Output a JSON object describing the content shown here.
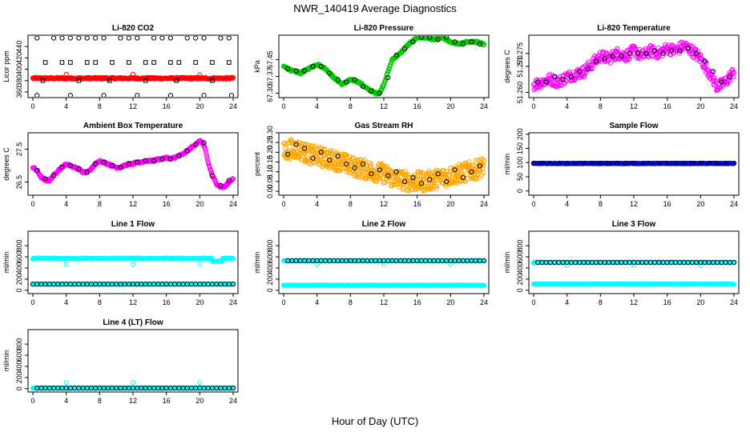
{
  "figure": {
    "title": "NWR_140419  Average Diagnostics",
    "xlabel": "Hour of Day (UTC)"
  },
  "colors": {
    "black": "#000000",
    "red": "#ff0000",
    "green": "#00cc00",
    "magenta": "#ff00ff",
    "orange": "#ffa500",
    "blue": "#0000ff",
    "cyan": "#00ffff"
  },
  "chart_data": [
    {
      "type": "scatter",
      "title": "Li-820 CO2",
      "ylabel": "Licor ppm",
      "xlim": [
        0,
        24
      ],
      "ylim": [
        350,
        460
      ],
      "xticks": [
        0,
        4,
        8,
        12,
        16,
        20,
        24
      ],
      "yticks": [
        360,
        380,
        400,
        420,
        440
      ],
      "ytick_labels": [
        "360",
        "380",
        "400",
        "420",
        "440"
      ],
      "series": [
        {
          "color": "red",
          "marker": "o",
          "dense_band": {
            "y": 384,
            "jitter": 1.5
          },
          "x": [
            4,
            12,
            20
          ],
          "y": [
            391,
            391,
            390
          ]
        },
        {
          "color": "black",
          "marker": "o",
          "x": [
            0.5,
            2.5,
            3.5,
            4.5,
            5.5,
            6.5,
            7.5,
            8.5,
            10.5,
            11.5,
            12.5,
            14.5,
            15.5,
            16.5,
            18.5,
            19.5,
            20.5,
            22.5,
            23.5,
            0.5,
            4.5,
            8.5,
            12.5,
            16.5,
            20.5,
            23.8
          ],
          "y": [
            455,
            455,
            455,
            455,
            455,
            455,
            455,
            455,
            455,
            455,
            455,
            455,
            455,
            455,
            455,
            455,
            455,
            455,
            455,
            354,
            354,
            354,
            354,
            354,
            354,
            354
          ]
        },
        {
          "color": "black",
          "marker": "s",
          "x": [
            1.5,
            3.5,
            4.5,
            6.5,
            7.5,
            9.5,
            11.5,
            13.5,
            14.5,
            16.5,
            17.5,
            19.5,
            21.5,
            23.5,
            1.2,
            5.5,
            9.2,
            13.5,
            17.2,
            21.5
          ],
          "y": [
            412,
            412,
            412,
            412,
            412,
            412,
            412,
            412,
            412,
            412,
            412,
            412,
            412,
            412,
            380,
            380,
            380,
            380,
            380,
            380
          ]
        }
      ]
    },
    {
      "type": "scatter",
      "title": "Li-820 Pressure",
      "ylabel": "kPa",
      "xlim": [
        0,
        24
      ],
      "ylim": [
        67.28,
        67.56
      ],
      "xticks": [
        0,
        4,
        8,
        12,
        16,
        20,
        24
      ],
      "yticks": [
        67.3,
        67.375,
        67.45
      ],
      "ytick_labels": [
        "67.30",
        "67.37",
        "67.45"
      ],
      "series": [
        {
          "color": "green",
          "marker": "o",
          "x": [
            0,
            1,
            2,
            3,
            4,
            5,
            6,
            7,
            8,
            9,
            10,
            11,
            11.5,
            12,
            13,
            14,
            15,
            16,
            17,
            18,
            19,
            20,
            21,
            22,
            23,
            24
          ],
          "y": [
            67.42,
            67.4,
            67.39,
            67.41,
            67.43,
            67.41,
            67.37,
            67.34,
            67.36,
            67.35,
            67.32,
            67.3,
            67.3,
            67.34,
            67.45,
            67.48,
            67.52,
            67.55,
            67.55,
            67.54,
            67.55,
            67.53,
            67.52,
            67.53,
            67.53,
            67.52
          ]
        },
        {
          "color": "black",
          "marker": "o",
          "x": [
            0.5,
            1.5,
            2.5,
            3.5,
            4.5,
            5.5,
            6.5,
            7.5,
            8.5,
            9.5,
            10.5,
            11.5,
            12.5,
            13.5,
            14.5,
            15.5,
            16.5,
            17.5,
            18.5,
            19.5,
            20.5,
            21.5,
            22.5,
            23.5
          ],
          "y": [
            67.41,
            67.4,
            67.4,
            67.42,
            67.42,
            67.39,
            67.36,
            67.35,
            67.36,
            67.33,
            67.31,
            67.3,
            67.37,
            67.47,
            67.5,
            67.53,
            67.55,
            67.55,
            67.54,
            67.55,
            67.53,
            67.52,
            67.53,
            67.52
          ]
        }
      ]
    },
    {
      "type": "scatter",
      "title": "Li-820 Temperature",
      "ylabel": "degrees C",
      "xlim": [
        0,
        24
      ],
      "ylim": [
        51.258,
        51.282
      ],
      "xticks": [
        0,
        4,
        8,
        12,
        16,
        20,
        24
      ],
      "yticks": [
        51.26,
        51.27,
        51.275
      ],
      "ytick_labels": [
        "51.260",
        "51.270",
        "51.275"
      ],
      "series": [
        {
          "color": "magenta",
          "marker": "o",
          "x": [
            0,
            1,
            2,
            3,
            4,
            5,
            6,
            7,
            8,
            9,
            10,
            11,
            12,
            13,
            14,
            15,
            16,
            17,
            18,
            19,
            20,
            21,
            22,
            23,
            24
          ],
          "y": [
            51.263,
            51.264,
            51.265,
            51.264,
            51.266,
            51.267,
            51.268,
            51.271,
            51.274,
            51.273,
            51.275,
            51.274,
            51.276,
            51.274,
            51.276,
            51.275,
            51.277,
            51.276,
            51.278,
            51.276,
            51.273,
            51.268,
            51.262,
            51.264,
            51.268
          ]
        },
        {
          "color": "black",
          "marker": "o",
          "x": [
            0.5,
            1.5,
            2.5,
            3.5,
            4.5,
            5.5,
            6.5,
            7.5,
            8.5,
            9.5,
            10.5,
            11.5,
            12.5,
            13.5,
            14.5,
            15.5,
            16.5,
            17.5,
            18.5,
            19.5,
            20.5,
            21.5,
            22.5,
            23.5
          ],
          "y": [
            51.264,
            51.264,
            51.266,
            51.265,
            51.266,
            51.268,
            51.269,
            51.272,
            51.273,
            51.274,
            51.274,
            51.275,
            51.275,
            51.275,
            51.276,
            51.275,
            51.276,
            51.276,
            51.277,
            51.275,
            51.272,
            51.268,
            51.264,
            51.266
          ]
        }
      ]
    },
    {
      "type": "scatter",
      "title": "Ambient Box Temperature",
      "ylabel": "degrees C",
      "xlim": [
        0,
        24
      ],
      "ylim": [
        26.1,
        28.0
      ],
      "xticks": [
        0,
        4,
        8,
        12,
        16,
        20,
        24
      ],
      "yticks": [
        26.5,
        27.5
      ],
      "ytick_labels": [
        "26.5",
        "27.5"
      ],
      "series": [
        {
          "color": "magenta",
          "marker": "o",
          "x": [
            0,
            0.5,
            1,
            1.5,
            2,
            2.5,
            3,
            3.5,
            4,
            4.5,
            5,
            5.5,
            6,
            6.5,
            7,
            7.5,
            8,
            8.5,
            9,
            9.5,
            10,
            10.5,
            11,
            11.5,
            12,
            12.5,
            13,
            13.5,
            14,
            14.5,
            15,
            15.5,
            16,
            16.5,
            17,
            17.5,
            18,
            18.5,
            19,
            19.5,
            20,
            20.3,
            20.6,
            21,
            21.5,
            22,
            22.5,
            23,
            23.5,
            24
          ],
          "y": [
            26.95,
            26.85,
            26.65,
            26.55,
            26.55,
            26.7,
            26.85,
            26.95,
            27.05,
            27.0,
            26.95,
            26.9,
            26.8,
            26.8,
            26.9,
            27.05,
            27.15,
            27.1,
            27.05,
            27.0,
            26.95,
            26.95,
            27.0,
            27.05,
            27.05,
            27.1,
            27.1,
            27.15,
            27.15,
            27.15,
            27.2,
            27.2,
            27.25,
            27.2,
            27.25,
            27.3,
            27.35,
            27.45,
            27.55,
            27.65,
            27.75,
            27.7,
            27.55,
            27.1,
            26.7,
            26.45,
            26.35,
            26.35,
            26.5,
            26.6
          ]
        },
        {
          "color": "black",
          "marker": "o",
          "x": [
            0.5,
            1.5,
            2.5,
            3.5,
            4.5,
            5.5,
            6.5,
            7.5,
            8.5,
            9.5,
            10.5,
            11.5,
            12.5,
            13.5,
            14.5,
            15.5,
            16.5,
            17.5,
            18.5,
            19.5,
            20.5,
            21.5,
            22.5,
            23.5
          ],
          "y": [
            26.85,
            26.6,
            26.7,
            26.95,
            27.0,
            26.9,
            26.8,
            27.05,
            27.1,
            27.0,
            26.95,
            27.05,
            27.1,
            27.15,
            27.15,
            27.2,
            27.2,
            27.3,
            27.45,
            27.65,
            27.7,
            26.7,
            26.4,
            26.55
          ]
        }
      ]
    },
    {
      "type": "scatter",
      "title": "Gas Stream RH",
      "ylabel": "percent",
      "xlim": [
        0,
        24
      ],
      "ylim": [
        -0.02,
        0.3
      ],
      "xticks": [
        0,
        4,
        8,
        12,
        16,
        20,
        24
      ],
      "yticks": [
        0.0,
        0.05,
        0.1,
        0.15,
        0.2,
        0.25,
        0.3
      ],
      "ytick_labels": [
        "0.00",
        "0.05",
        "0.10",
        "0.15",
        "0.20",
        "0.25",
        "0.30"
      ],
      "series": [
        {
          "color": "orange",
          "marker": "o",
          "x": [
            0,
            1,
            2,
            3,
            4,
            5,
            6,
            7,
            8,
            9,
            10,
            11,
            12,
            13,
            14,
            15,
            16,
            17,
            18,
            19,
            20,
            21,
            22,
            23,
            24
          ],
          "y": [
            0.2,
            0.22,
            0.21,
            0.19,
            0.18,
            0.17,
            0.16,
            0.15,
            0.13,
            0.12,
            0.11,
            0.1,
            0.09,
            0.07,
            0.06,
            0.05,
            0.05,
            0.05,
            0.06,
            0.07,
            0.08,
            0.09,
            0.1,
            0.11,
            0.13
          ],
          "spread": 0.05
        },
        {
          "color": "black",
          "marker": "o",
          "x": [
            0.5,
            1.5,
            2.5,
            3.5,
            4.5,
            5.5,
            6.5,
            7.5,
            8.5,
            9.5,
            10.5,
            11.5,
            12.5,
            13.5,
            14.5,
            15.5,
            16.5,
            17.5,
            18.5,
            19.5,
            20.5,
            21.5,
            22.5,
            23.5
          ],
          "y": [
            0.19,
            0.24,
            0.22,
            0.17,
            0.2,
            0.16,
            0.18,
            0.14,
            0.12,
            0.14,
            0.09,
            0.11,
            0.08,
            0.1,
            0.05,
            0.07,
            0.04,
            0.06,
            0.09,
            0.05,
            0.11,
            0.07,
            0.1,
            0.13
          ]
        }
      ]
    },
    {
      "type": "scatter",
      "title": "Sample Flow",
      "ylabel": "ml/min",
      "xlim": [
        0,
        24
      ],
      "ylim": [
        -15,
        205
      ],
      "xticks": [
        0,
        4,
        8,
        12,
        16,
        20,
        24
      ],
      "yticks": [
        0,
        50,
        100,
        150,
        200
      ],
      "ytick_labels": [
        "0",
        "50",
        "100",
        "150",
        "200"
      ],
      "series": [
        {
          "color": "blue",
          "marker": "o",
          "dense_band": {
            "y": 97,
            "jitter": 1
          },
          "x": [],
          "y": []
        },
        {
          "color": "black",
          "marker": "o",
          "dense_band": {
            "y": 97,
            "jitter": 0,
            "step": 1
          },
          "x": [],
          "y": []
        }
      ]
    },
    {
      "type": "scatter",
      "title": "Line 1 Flow",
      "ylabel": "ml/min",
      "xlim": [
        0,
        24
      ],
      "ylim": [
        -60,
        1060
      ],
      "xticks": [
        0,
        4,
        8,
        12,
        16,
        20,
        24
      ],
      "yticks": [
        0,
        200,
        400,
        600,
        800
      ],
      "ytick_labels": [
        "0",
        "200",
        "400",
        "600",
        "800"
      ],
      "series": [
        {
          "color": "cyan",
          "marker": "o",
          "dense_band": {
            "y": 570,
            "jitter": 8,
            "dip": [
              21.5,
              520
            ]
          },
          "x": [
            4,
            12,
            20
          ],
          "y": [
            470,
            470,
            470
          ]
        },
        {
          "color": "cyan",
          "marker": "o",
          "dense_band": {
            "y": 110,
            "jitter": 2
          },
          "x": [],
          "y": []
        },
        {
          "color": "black",
          "marker": "o",
          "dense_band": {
            "y": 110,
            "jitter": 0,
            "step": 0.5
          },
          "x": [],
          "y": []
        }
      ]
    },
    {
      "type": "scatter",
      "title": "Line 2 Flow",
      "ylabel": "ml/min",
      "xlim": [
        0,
        24
      ],
      "ylim": [
        -60,
        1060
      ],
      "xticks": [
        0,
        4,
        8,
        12,
        16,
        20,
        24
      ],
      "yticks": [
        0,
        200,
        400,
        600,
        800
      ],
      "ytick_labels": [
        "0",
        "200",
        "400",
        "600",
        "800"
      ],
      "series": [
        {
          "color": "cyan",
          "marker": "o",
          "dense_band": {
            "y": 530,
            "jitter": 3
          },
          "x": [
            4,
            12,
            20
          ],
          "y": [
            470,
            470,
            470
          ]
        },
        {
          "color": "cyan",
          "marker": "o",
          "dense_band": {
            "y": 90,
            "jitter": 3
          },
          "x": [],
          "y": []
        },
        {
          "color": "black",
          "marker": "o",
          "dense_band": {
            "y": 530,
            "jitter": 0,
            "step": 0.5,
            "start": 0.5
          },
          "x": [],
          "y": []
        }
      ]
    },
    {
      "type": "scatter",
      "title": "Line 3 Flow",
      "ylabel": "ml/min",
      "xlim": [
        0,
        24
      ],
      "ylim": [
        -60,
        1060
      ],
      "xticks": [
        0,
        4,
        8,
        12,
        16,
        20,
        24
      ],
      "yticks": [
        0,
        200,
        400,
        600,
        800
      ],
      "ytick_labels": [
        "0",
        "200",
        "400",
        "600",
        "800"
      ],
      "series": [
        {
          "color": "cyan",
          "marker": "o",
          "dense_band": {
            "y": 500,
            "jitter": 3
          },
          "x": [
            4,
            12,
            20
          ],
          "y": [
            450,
            450,
            450
          ]
        },
        {
          "color": "cyan",
          "marker": "o",
          "dense_band": {
            "y": 110,
            "jitter": 3
          },
          "x": [],
          "y": []
        },
        {
          "color": "black",
          "marker": "o",
          "dense_band": {
            "y": 500,
            "jitter": 0,
            "step": 0.5,
            "start": 0.5
          },
          "x": [],
          "y": []
        }
      ]
    },
    {
      "type": "scatter",
      "title": "Line 4 (LT) Flow",
      "ylabel": "ml/min",
      "xlim": [
        0,
        24
      ],
      "ylim": [
        -60,
        1060
      ],
      "xticks": [
        0,
        4,
        8,
        12,
        16,
        20,
        24
      ],
      "yticks": [
        0,
        200,
        400,
        600,
        800
      ],
      "ytick_labels": [
        "0",
        "200",
        "400",
        "600",
        "800"
      ],
      "series": [
        {
          "color": "cyan",
          "marker": "o",
          "dense_band": {
            "y": 10,
            "jitter": 2
          },
          "x": [
            4,
            12,
            20
          ],
          "y": [
            110,
            110,
            110
          ]
        },
        {
          "color": "black",
          "marker": "o",
          "dense_band": {
            "y": 10,
            "jitter": 0,
            "step": 0.5,
            "start": 0.5
          },
          "x": [],
          "y": []
        }
      ]
    }
  ]
}
